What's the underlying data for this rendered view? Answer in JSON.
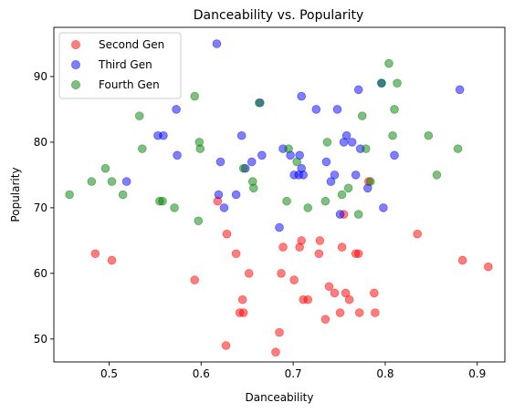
{
  "chart_data": {
    "type": "scatter",
    "title": "Danceability vs. Popularity",
    "xlabel": "Danceability",
    "ylabel": "Popularity",
    "xlim": [
      0.44,
      0.93
    ],
    "ylim": [
      46.5,
      97.5
    ],
    "xticks": [
      0.5,
      0.6,
      0.7,
      0.8,
      0.9
    ],
    "yticks": [
      50,
      60,
      70,
      80,
      90
    ],
    "xtick_labels": [
      "0.5",
      "0.6",
      "0.7",
      "0.8",
      "0.9"
    ],
    "ytick_labels": [
      "50",
      "60",
      "70",
      "80",
      "90"
    ],
    "grid": false,
    "legend_position": "top-left",
    "marker_alpha": 0.5,
    "series": [
      {
        "name": "Second Gen",
        "color": "#ff0000",
        "points": [
          [
            0.485,
            63
          ],
          [
            0.503,
            62
          ],
          [
            0.593,
            59
          ],
          [
            0.618,
            71
          ],
          [
            0.627,
            49
          ],
          [
            0.628,
            66
          ],
          [
            0.638,
            63
          ],
          [
            0.642,
            54
          ],
          [
            0.645,
            56
          ],
          [
            0.646,
            54
          ],
          [
            0.652,
            60
          ],
          [
            0.681,
            48
          ],
          [
            0.685,
            51
          ],
          [
            0.687,
            60
          ],
          [
            0.689,
            64
          ],
          [
            0.701,
            59
          ],
          [
            0.707,
            64
          ],
          [
            0.709,
            65
          ],
          [
            0.711,
            56
          ],
          [
            0.716,
            56
          ],
          [
            0.728,
            63
          ],
          [
            0.729,
            65
          ],
          [
            0.735,
            53
          ],
          [
            0.739,
            58
          ],
          [
            0.745,
            57
          ],
          [
            0.751,
            54
          ],
          [
            0.753,
            64
          ],
          [
            0.755,
            69
          ],
          [
            0.757,
            57
          ],
          [
            0.761,
            56
          ],
          [
            0.768,
            63
          ],
          [
            0.771,
            63
          ],
          [
            0.772,
            54
          ],
          [
            0.782,
            74
          ],
          [
            0.788,
            57
          ],
          [
            0.789,
            54
          ],
          [
            0.835,
            66
          ],
          [
            0.884,
            62
          ],
          [
            0.912,
            61
          ]
        ]
      },
      {
        "name": "Third Gen",
        "color": "#0000ff",
        "points": [
          [
            0.519,
            74
          ],
          [
            0.553,
            81
          ],
          [
            0.559,
            81
          ],
          [
            0.573,
            85
          ],
          [
            0.574,
            78
          ],
          [
            0.617,
            95
          ],
          [
            0.619,
            72
          ],
          [
            0.621,
            77
          ],
          [
            0.625,
            70
          ],
          [
            0.638,
            72
          ],
          [
            0.644,
            81
          ],
          [
            0.648,
            76
          ],
          [
            0.655,
            77
          ],
          [
            0.664,
            86
          ],
          [
            0.666,
            78
          ],
          [
            0.685,
            67
          ],
          [
            0.689,
            79
          ],
          [
            0.697,
            78
          ],
          [
            0.701,
            75
          ],
          [
            0.706,
            75
          ],
          [
            0.707,
            78
          ],
          [
            0.709,
            87
          ],
          [
            0.709,
            76
          ],
          [
            0.711,
            75
          ],
          [
            0.725,
            85
          ],
          [
            0.736,
            77
          ],
          [
            0.741,
            74
          ],
          [
            0.745,
            75
          ],
          [
            0.748,
            85
          ],
          [
            0.751,
            69
          ],
          [
            0.755,
            80
          ],
          [
            0.758,
            81
          ],
          [
            0.764,
            80
          ],
          [
            0.768,
            75
          ],
          [
            0.771,
            88
          ],
          [
            0.773,
            79
          ],
          [
            0.781,
            73
          ],
          [
            0.796,
            89
          ],
          [
            0.798,
            70
          ],
          [
            0.81,
            78
          ],
          [
            0.881,
            88
          ]
        ]
      },
      {
        "name": "Fourth Gen",
        "color": "#008000",
        "points": [
          [
            0.457,
            72
          ],
          [
            0.481,
            74
          ],
          [
            0.496,
            76
          ],
          [
            0.503,
            74
          ],
          [
            0.515,
            72
          ],
          [
            0.533,
            84
          ],
          [
            0.536,
            79
          ],
          [
            0.555,
            71
          ],
          [
            0.558,
            71
          ],
          [
            0.571,
            70
          ],
          [
            0.593,
            87
          ],
          [
            0.597,
            68
          ],
          [
            0.598,
            80
          ],
          [
            0.599,
            79
          ],
          [
            0.646,
            76
          ],
          [
            0.656,
            74
          ],
          [
            0.657,
            73
          ],
          [
            0.663,
            86
          ],
          [
            0.693,
            71
          ],
          [
            0.695,
            79
          ],
          [
            0.704,
            77
          ],
          [
            0.716,
            70
          ],
          [
            0.735,
            71
          ],
          [
            0.737,
            80
          ],
          [
            0.753,
            72
          ],
          [
            0.76,
            73
          ],
          [
            0.771,
            69
          ],
          [
            0.775,
            84
          ],
          [
            0.779,
            79
          ],
          [
            0.784,
            74
          ],
          [
            0.796,
            89
          ],
          [
            0.804,
            92
          ],
          [
            0.808,
            81
          ],
          [
            0.81,
            85
          ],
          [
            0.813,
            89
          ],
          [
            0.847,
            81
          ],
          [
            0.856,
            75
          ],
          [
            0.879,
            79
          ]
        ]
      }
    ]
  }
}
